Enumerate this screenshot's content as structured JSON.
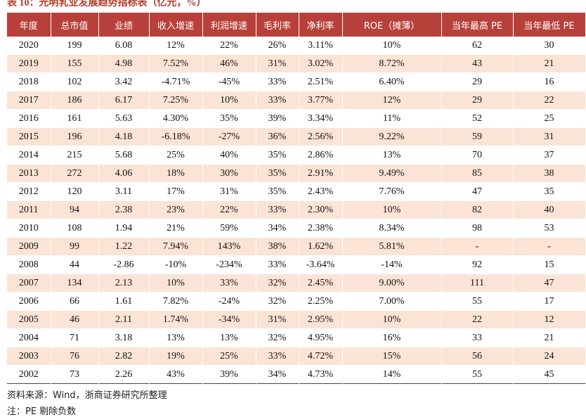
{
  "header": {
    "title": "表 10：光明乳业发展趋势指标表（亿元，%）"
  },
  "table": {
    "columns": [
      "年度",
      "总市值",
      "业绩",
      "收入增速",
      "利润增速",
      "毛利率",
      "净利率",
      "ROE（摊薄）",
      "当年最高 PE",
      "当年最低 PE"
    ],
    "rows": [
      [
        "2020",
        "199",
        "6.08",
        "12%",
        "22%",
        "26%",
        "3.11%",
        "10%",
        "62",
        "30"
      ],
      [
        "2019",
        "155",
        "4.98",
        "7.52%",
        "46%",
        "31%",
        "3.02%",
        "8.72%",
        "43",
        "21"
      ],
      [
        "2018",
        "102",
        "3.42",
        "-4.71%",
        "-45%",
        "33%",
        "2.51%",
        "6.40%",
        "29",
        "16"
      ],
      [
        "2017",
        "186",
        "6.17",
        "7.25%",
        "10%",
        "33%",
        "3.77%",
        "12%",
        "29",
        "22"
      ],
      [
        "2016",
        "161",
        "5.63",
        "4.30%",
        "35%",
        "39%",
        "3.34%",
        "11%",
        "52",
        "25"
      ],
      [
        "2015",
        "196",
        "4.18",
        "-6.18%",
        "-27%",
        "36%",
        "2.56%",
        "9.22%",
        "59",
        "31"
      ],
      [
        "2014",
        "215",
        "5.68",
        "25%",
        "40%",
        "35%",
        "2.86%",
        "13%",
        "70",
        "37"
      ],
      [
        "2013",
        "272",
        "4.06",
        "18%",
        "30%",
        "35%",
        "2.91%",
        "9.49%",
        "85",
        "38"
      ],
      [
        "2012",
        "120",
        "3.11",
        "17%",
        "31%",
        "35%",
        "2.43%",
        "7.76%",
        "47",
        "35"
      ],
      [
        "2011",
        "94",
        "2.38",
        "23%",
        "22%",
        "33%",
        "2.30%",
        "10%",
        "82",
        "40"
      ],
      [
        "2010",
        "108",
        "1.94",
        "21%",
        "59%",
        "34%",
        "2.38%",
        "8.34%",
        "98",
        "53"
      ],
      [
        "2009",
        "99",
        "1.22",
        "7.94%",
        "143%",
        "38%",
        "1.62%",
        "5.81%",
        "-",
        "-"
      ],
      [
        "2008",
        "44",
        "-2.86",
        "-10%",
        "-234%",
        "33%",
        "-3.64%",
        "-14%",
        "92",
        "15"
      ],
      [
        "2007",
        "134",
        "2.13",
        "10%",
        "33%",
        "32%",
        "2.45%",
        "9.00%",
        "111",
        "47"
      ],
      [
        "2006",
        "66",
        "1.61",
        "7.82%",
        "-24%",
        "32%",
        "2.25%",
        "7.00%",
        "55",
        "17"
      ],
      [
        "2005",
        "46",
        "2.11",
        "1.74%",
        "-34%",
        "31%",
        "2.95%",
        "10%",
        "22",
        "12"
      ],
      [
        "2004",
        "71",
        "3.18",
        "13%",
        "13%",
        "32%",
        "4.95%",
        "16%",
        "33",
        "21"
      ],
      [
        "2003",
        "76",
        "2.82",
        "19%",
        "25%",
        "33%",
        "4.72%",
        "15%",
        "56",
        "24"
      ],
      [
        "2002",
        "73",
        "2.26",
        "43%",
        "39%",
        "34%",
        "4.73%",
        "14%",
        "55",
        "45"
      ]
    ]
  },
  "footer": {
    "source": "资料来源：Wind，浙商证券研究所整理",
    "note": "注：PE 剔除负数"
  }
}
